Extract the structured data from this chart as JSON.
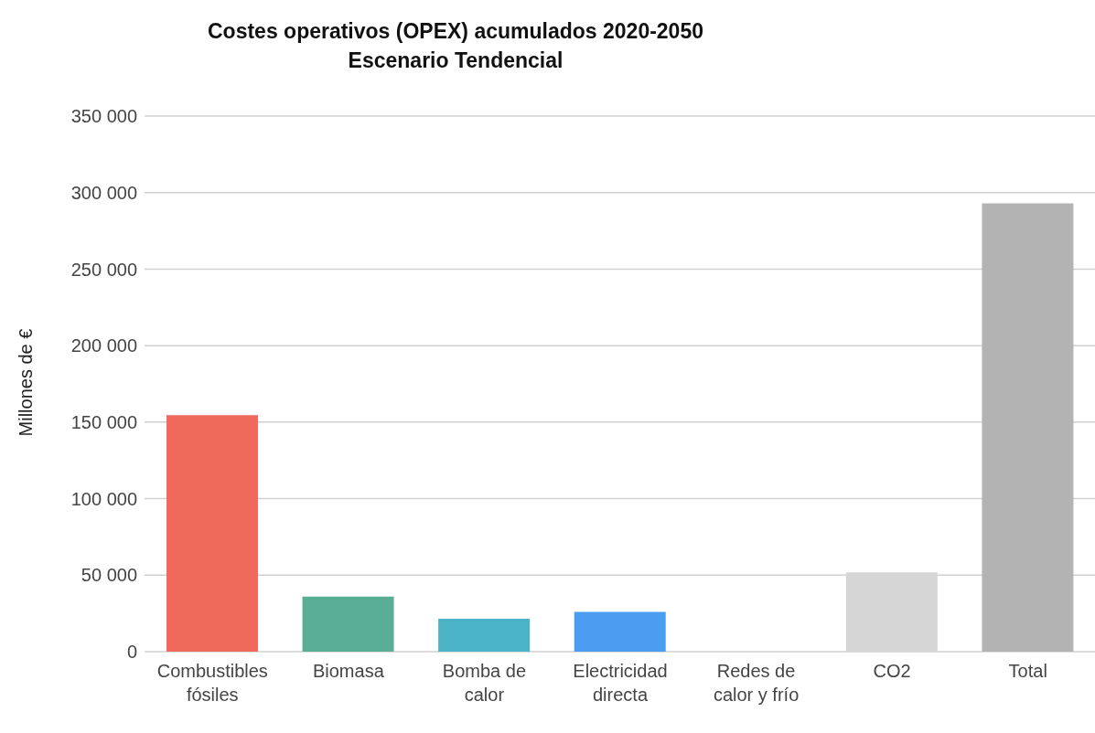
{
  "chart_data": {
    "type": "bar",
    "title": "Costes operativos (OPEX) acumulados 2020-2050",
    "subtitle": "Escenario Tendencial",
    "ylabel": "Millones de €",
    "categories": [
      "Combustibles fósiles",
      "Biomasa",
      "Bomba de calor",
      "Electricidad directa",
      "Redes de calor y frío",
      "CO2",
      "Total"
    ],
    "values": [
      154500,
      36000,
      21500,
      26000,
      0,
      51800,
      293000
    ],
    "colors": [
      "#ef6a5a",
      "#5aae96",
      "#4bb3c6",
      "#4a9df0",
      "#9ccf8a",
      "#d6d6d6",
      "#b3b3b3"
    ],
    "ylim": [
      0,
      350000
    ],
    "yticks": [
      {
        "value": 0,
        "label": "0"
      },
      {
        "value": 50000,
        "label": "50 000"
      },
      {
        "value": 100000,
        "label": "100 000"
      },
      {
        "value": 150000,
        "label": "150 000"
      },
      {
        "value": 200000,
        "label": "200 000"
      },
      {
        "value": 250000,
        "label": "250 000"
      },
      {
        "value": 300000,
        "label": "300 000"
      },
      {
        "value": 350000,
        "label": "350 000"
      }
    ],
    "grid": "y",
    "legend": false
  }
}
